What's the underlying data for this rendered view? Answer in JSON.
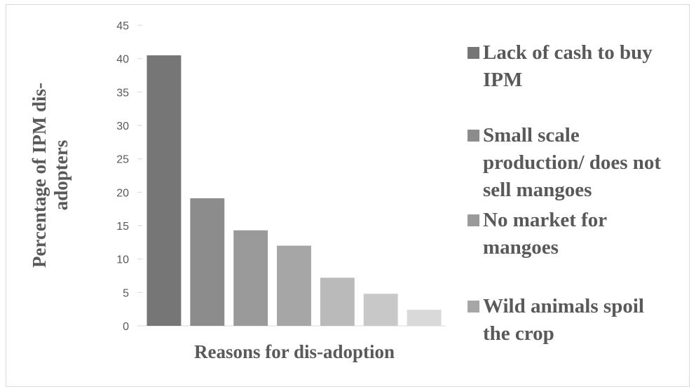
{
  "chart_data": {
    "type": "bar",
    "xlabel": "Reasons for dis-adoption",
    "ylabel_lines": [
      "Percentage of IPM dis-",
      "adopters"
    ],
    "ylim": [
      0,
      45
    ],
    "yticks": [
      0,
      5,
      10,
      15,
      20,
      25,
      30,
      35,
      40,
      45
    ],
    "grid": false,
    "legend_position": "right",
    "series": [
      {
        "name": "Lack of cash to buy IPM",
        "value": 40.5,
        "color": "#767676"
      },
      {
        "name": "Small scale production/ does not sell mangoes",
        "value": 19.1,
        "color": "#8c8c8c"
      },
      {
        "name": "No market for mangoes",
        "value": 14.3,
        "color": "#9a9a9a"
      },
      {
        "name": "Wild animals spoil the crop",
        "value": 12.0,
        "color": "#a6a6a6"
      },
      {
        "name": "",
        "value": 7.2,
        "color": "#bababa"
      },
      {
        "name": "",
        "value": 4.8,
        "color": "#c8c8c8"
      },
      {
        "name": "",
        "value": 2.4,
        "color": "#d9d9d9"
      }
    ],
    "legend": [
      {
        "lines": [
          "Lack of cash to buy",
          "IPM"
        ],
        "color": "#767676"
      },
      {
        "lines": [
          "Small scale",
          "production/ does not",
          "sell mangoes"
        ],
        "color": "#8c8c8c"
      },
      {
        "lines": [
          "No market for",
          "mangoes"
        ],
        "color": "#9a9a9a"
      },
      {
        "lines": [
          "Wild animals spoil",
          "the crop"
        ],
        "color": "#a6a6a6"
      }
    ]
  }
}
